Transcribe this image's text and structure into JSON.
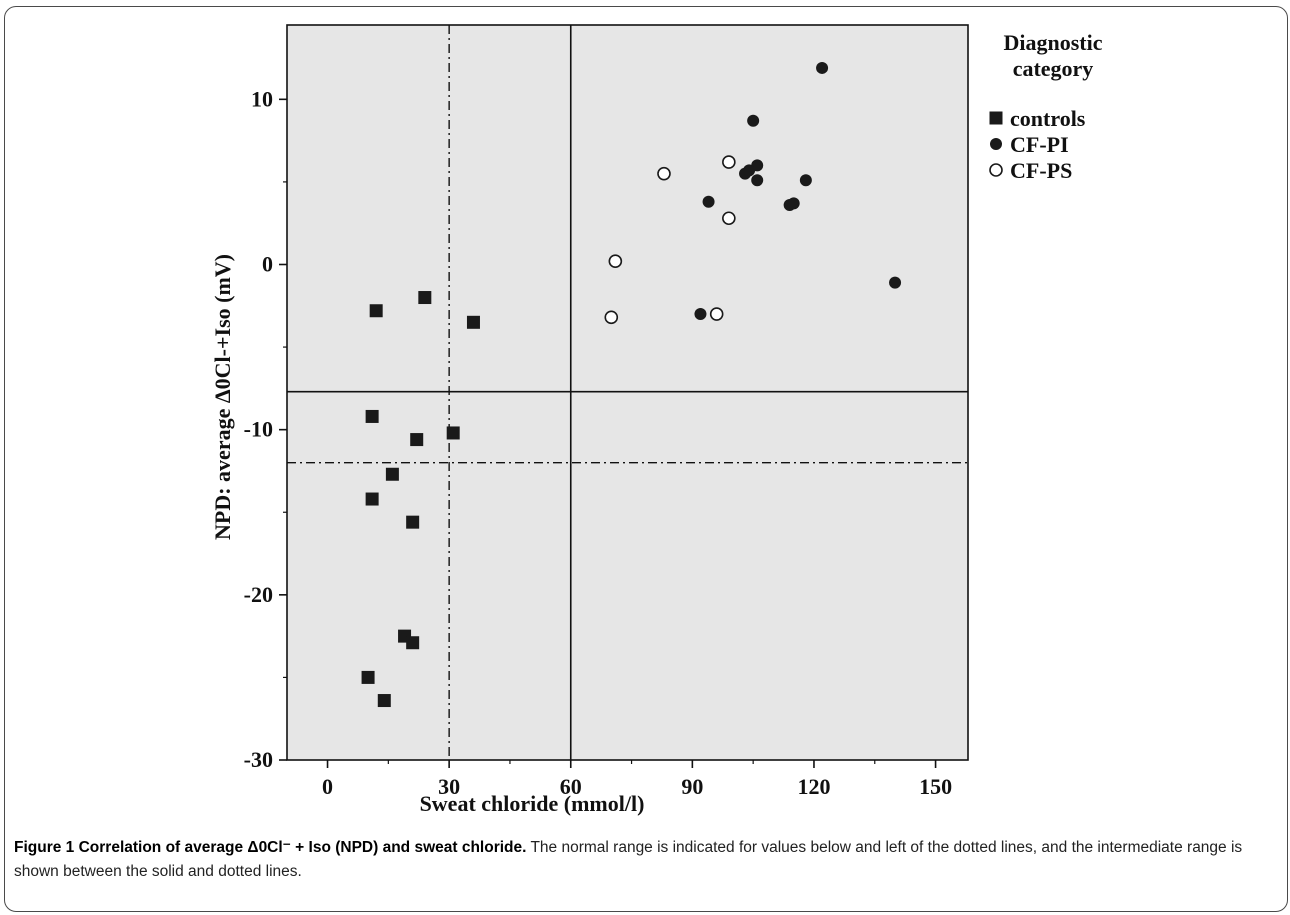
{
  "chart_data": {
    "type": "scatter",
    "title": "",
    "xlabel": "Sweat chloride (mmol/l)",
    "ylabel": "NPD: average Δ0Cl-+Iso (mV)",
    "xlim": [
      -10,
      158
    ],
    "ylim": [
      -30,
      14.5
    ],
    "x_ticks": [
      0,
      30,
      60,
      90,
      120,
      150
    ],
    "y_ticks": [
      -30,
      -20,
      -10,
      0,
      10
    ],
    "x_minor_ticks": [
      15,
      45,
      75,
      105,
      135
    ],
    "y_minor_ticks": [
      -25,
      -15,
      -5,
      5
    ],
    "grid": false,
    "background": "#e6e6e6",
    "legend": {
      "position": "right, outside",
      "title_lines": [
        "Diagnostic",
        "category"
      ]
    },
    "reference_lines": {
      "solid": {
        "x": 60,
        "y": -7.7
      },
      "dash_dot": {
        "x": 30,
        "y": -12
      }
    },
    "series": [
      {
        "name": "controls",
        "marker": "filled-square",
        "color": "#1a1a1a",
        "points": [
          [
            12,
            -2.8
          ],
          [
            24,
            -2.0
          ],
          [
            36,
            -3.5
          ],
          [
            11,
            -9.2
          ],
          [
            22,
            -10.6
          ],
          [
            31,
            -10.2
          ],
          [
            16,
            -12.7
          ],
          [
            11,
            -14.2
          ],
          [
            21,
            -15.6
          ],
          [
            19,
            -22.5
          ],
          [
            21,
            -22.9
          ],
          [
            10,
            -25.0
          ],
          [
            14,
            -26.4
          ]
        ]
      },
      {
        "name": "CF-PI",
        "marker": "filled-circle",
        "color": "#1a1a1a",
        "points": [
          [
            122,
            11.9
          ],
          [
            105,
            8.7
          ],
          [
            106,
            6.0
          ],
          [
            103,
            5.5
          ],
          [
            104,
            5.7
          ],
          [
            106,
            5.1
          ],
          [
            118,
            5.1
          ],
          [
            94,
            3.8
          ],
          [
            114,
            3.6
          ],
          [
            115,
            3.7
          ],
          [
            92,
            -3.0
          ],
          [
            140,
            -1.1
          ]
        ]
      },
      {
        "name": "CF-PS",
        "marker": "open-circle",
        "color": "#1a1a1a",
        "points": [
          [
            99,
            6.2
          ],
          [
            83,
            5.5
          ],
          [
            99,
            2.8
          ],
          [
            71,
            0.2
          ],
          [
            70,
            -3.2
          ],
          [
            96,
            -3.0
          ]
        ]
      }
    ]
  },
  "caption": {
    "title": "Figure 1 Correlation of average Δ0Cl⁻ + Iso (NPD) and sweat chloride.",
    "body": " The normal range is indicated for values below and left of the dotted lines, and the intermediate range is shown between the solid and dotted lines."
  }
}
